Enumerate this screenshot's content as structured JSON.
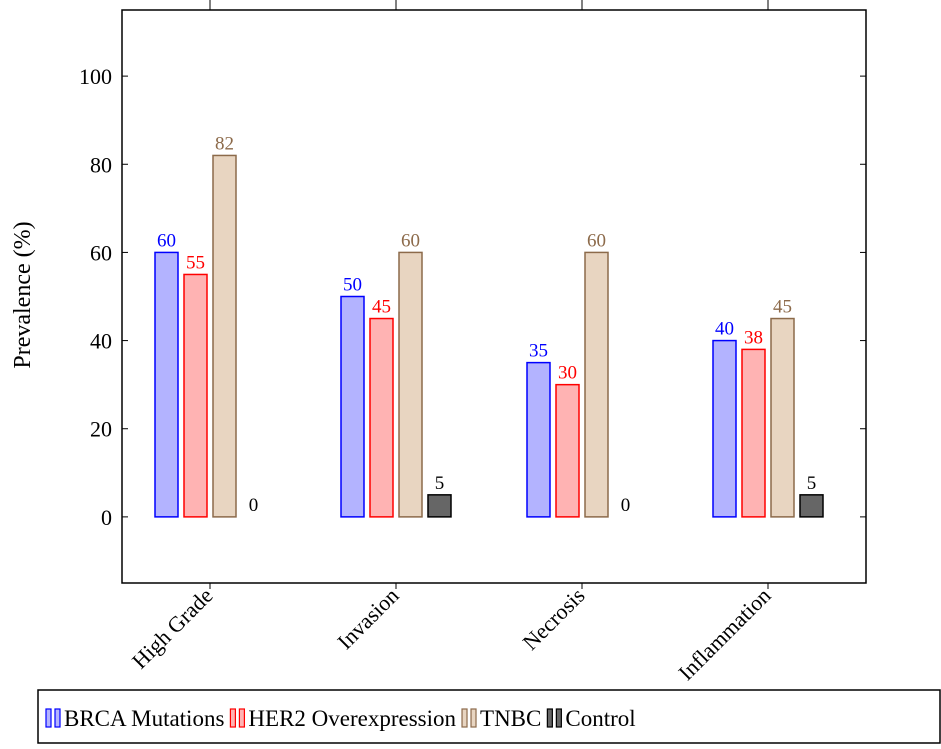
{
  "chart_data": {
    "type": "bar",
    "y_label": "Prevalence (%)",
    "categories": [
      "High Grade",
      "Invasion",
      "Necrosis",
      "Inflammation"
    ],
    "series": [
      {
        "name": "BRCA Mutations",
        "color": "#0000ff",
        "fill": "#b3b3ff",
        "values": [
          60,
          50,
          35,
          40
        ]
      },
      {
        "name": "HER2 Overexpression",
        "color": "#ff0000",
        "fill": "#ffb3b3",
        "values": [
          55,
          45,
          30,
          38
        ]
      },
      {
        "name": "TNBC",
        "color": "#8c6a4a",
        "fill": "#e8d5c1",
        "values": [
          82,
          60,
          60,
          45
        ]
      },
      {
        "name": "Control",
        "color": "#000000",
        "fill": "#666666",
        "values": [
          0,
          5,
          0,
          5
        ]
      }
    ],
    "ylim": [
      -15,
      115
    ],
    "yticks": [
      0,
      20,
      40,
      60,
      80,
      100
    ]
  }
}
